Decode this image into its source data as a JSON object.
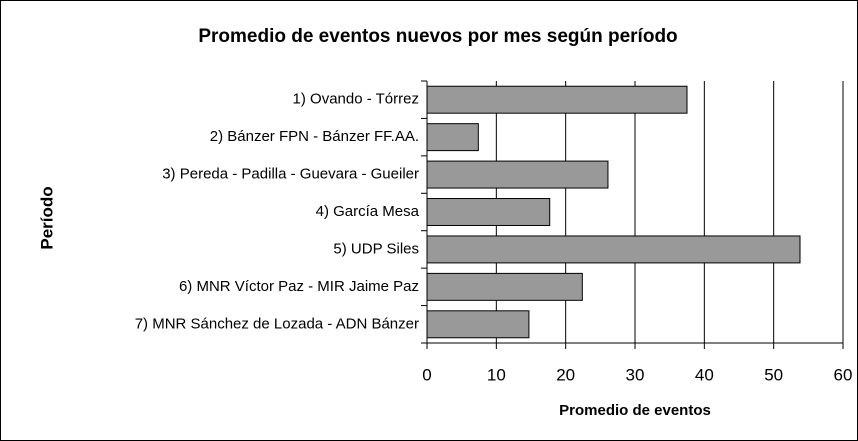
{
  "chart_data": {
    "type": "bar",
    "orientation": "horizontal",
    "title": "Promedio de eventos nuevos por mes según período",
    "xlabel": "Promedio de eventos",
    "ylabel": "Período",
    "categories": [
      "1) Ovando - Tórrez",
      "2) Bánzer FPN - Bánzer FF.AA.",
      "3) Pereda - Padilla - Guevara - Gueiler",
      "4) García Mesa",
      "5) UDP Siles",
      "6) MNR Víctor Paz - MIR Jaime Paz",
      "7) MNR Sánchez de Lozada - ADN Bánzer"
    ],
    "values": [
      37.5,
      7.4,
      26.1,
      17.7,
      53.8,
      22.4,
      14.7
    ],
    "color": "#999999",
    "xlim": [
      0,
      60
    ],
    "xticks": [
      0,
      10,
      20,
      30,
      40,
      50,
      60
    ],
    "grid": true
  }
}
